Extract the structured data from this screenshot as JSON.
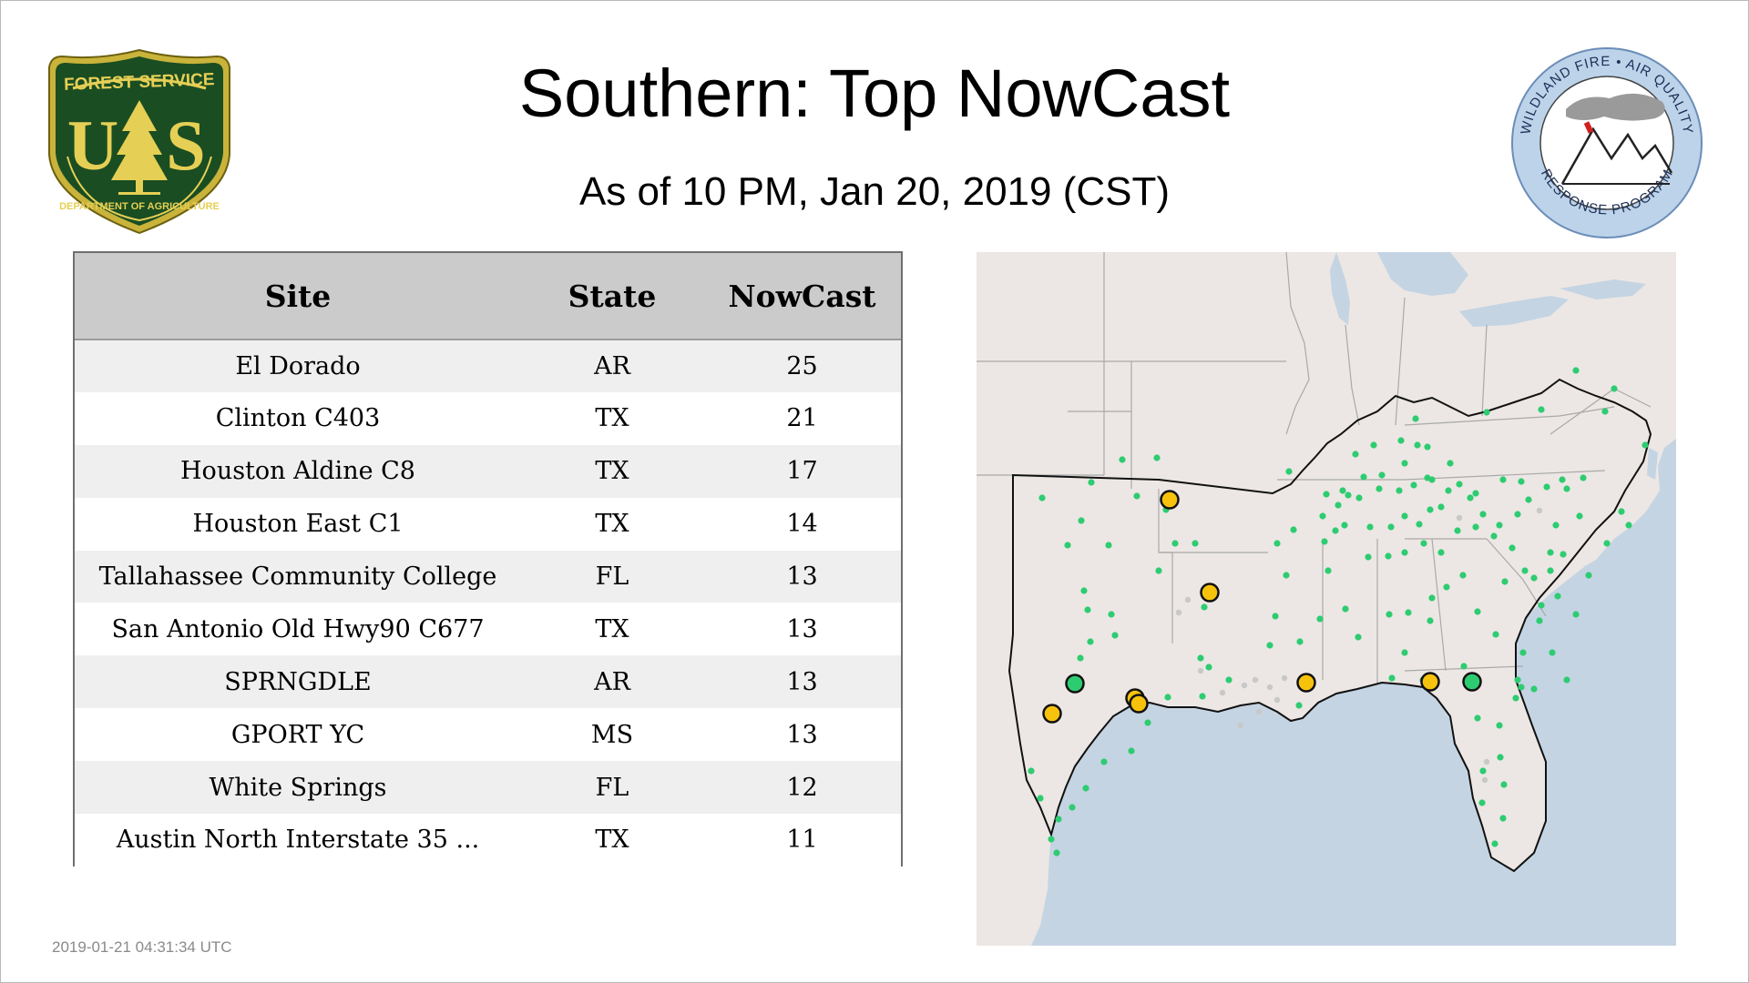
{
  "header": {
    "title": "Southern: Top NowCast",
    "subtitle": "As of 10 PM, Jan 20, 2019 (CST)"
  },
  "logos": {
    "left": {
      "top_text": "FOREST SERVICE",
      "monogram": "US",
      "bottom_text": "DEPARTMENT OF AGRICULTURE"
    },
    "right": {
      "top_text": "WILDLAND FIRE • AIR QUALITY",
      "bottom_text": "RESPONSE PROGRAM"
    }
  },
  "table": {
    "headers": {
      "site": "Site",
      "state": "State",
      "nowcast": "NowCast"
    },
    "rows": [
      {
        "site": "El Dorado",
        "state": "AR",
        "nowcast": "25"
      },
      {
        "site": "Clinton C403",
        "state": "TX",
        "nowcast": "21"
      },
      {
        "site": "Houston Aldine C8",
        "state": "TX",
        "nowcast": "17"
      },
      {
        "site": "Houston East C1",
        "state": "TX",
        "nowcast": "14"
      },
      {
        "site": "Tallahassee Community College",
        "state": "FL",
        "nowcast": "13"
      },
      {
        "site": "San Antonio Old Hwy90 C677",
        "state": "TX",
        "nowcast": "13"
      },
      {
        "site": "SPRNGDLE",
        "state": "AR",
        "nowcast": "13"
      },
      {
        "site": "GPORT YC",
        "state": "MS",
        "nowcast": "13"
      },
      {
        "site": "White Springs",
        "state": "FL",
        "nowcast": "12"
      },
      {
        "site": "Austin North Interstate 35 ...",
        "state": "TX",
        "nowcast": "11"
      }
    ]
  },
  "map": {
    "colors": {
      "land": "#ece7e4",
      "water": "#c4d4e3",
      "good": "#2ecc71",
      "moderate": "#f6c20c",
      "nodata": "#c8c8c8",
      "outline": "#111111"
    }
  },
  "footer": {
    "timestamp": "2019-01-21 04:31:34 UTC"
  }
}
